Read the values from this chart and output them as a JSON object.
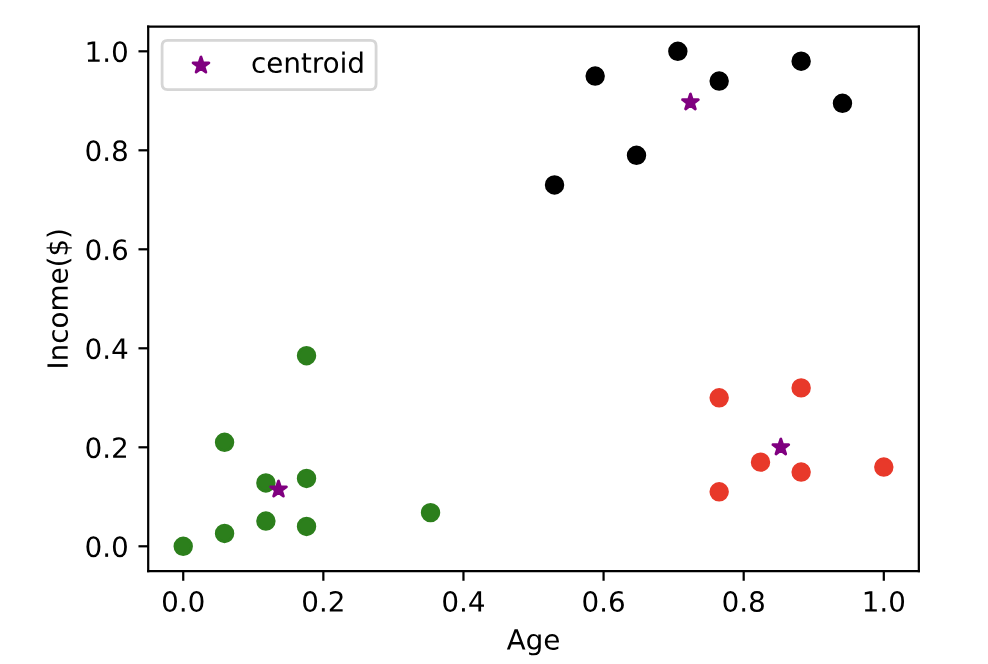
{
  "chart_data": {
    "type": "scatter",
    "xlabel": "Age",
    "ylabel": "Income($)",
    "xlim": [
      -0.05,
      1.05
    ],
    "ylim": [
      -0.05,
      1.05
    ],
    "xticks": [
      {
        "value": 0,
        "label": "0.0"
      },
      {
        "value": 0.2,
        "label": "0.2"
      },
      {
        "value": 0.4,
        "label": "0.4"
      },
      {
        "value": 0.6,
        "label": "0.6"
      },
      {
        "value": 0.8,
        "label": "0.8"
      },
      {
        "value": 1,
        "label": "1.0"
      }
    ],
    "yticks": [
      {
        "value": 0,
        "label": "0.0"
      },
      {
        "value": 0.2,
        "label": "0.2"
      },
      {
        "value": 0.4,
        "label": "0.4"
      },
      {
        "value": 0.6,
        "label": "0.6"
      },
      {
        "value": 0.8,
        "label": "0.8"
      },
      {
        "value": 1,
        "label": "1.0"
      }
    ],
    "legend": "top left",
    "grid": false,
    "series": [
      {
        "color": "#2c7f1c",
        "marker": "circle",
        "x": [
          0,
          0.059,
          0.059,
          0.118,
          0.118,
          0.176,
          0.176,
          0.176,
          0.353
        ],
        "values": [
          0,
          0.026,
          0.21,
          0.051,
          0.128,
          0.04,
          0.137,
          0.385,
          0.068
        ]
      },
      {
        "color": "#e8392a",
        "marker": "circle",
        "x": [
          0.765,
          0.765,
          0.824,
          0.882,
          0.882,
          1.0
        ],
        "values": [
          0.3,
          0.11,
          0.17,
          0.32,
          0.15,
          0.16
        ]
      },
      {
        "color": "#000000",
        "marker": "circle",
        "x": [
          0.53,
          0.588,
          0.647,
          0.706,
          0.765,
          0.882,
          0.941
        ],
        "values": [
          0.73,
          0.95,
          0.79,
          1.0,
          0.94,
          0.98,
          0.895
        ]
      },
      {
        "name": "centroid",
        "color": "#800080",
        "marker": "star",
        "x": [
          0.136,
          0.724,
          0.853
        ],
        "values": [
          0.115,
          0.897,
          0.2
        ]
      }
    ]
  }
}
